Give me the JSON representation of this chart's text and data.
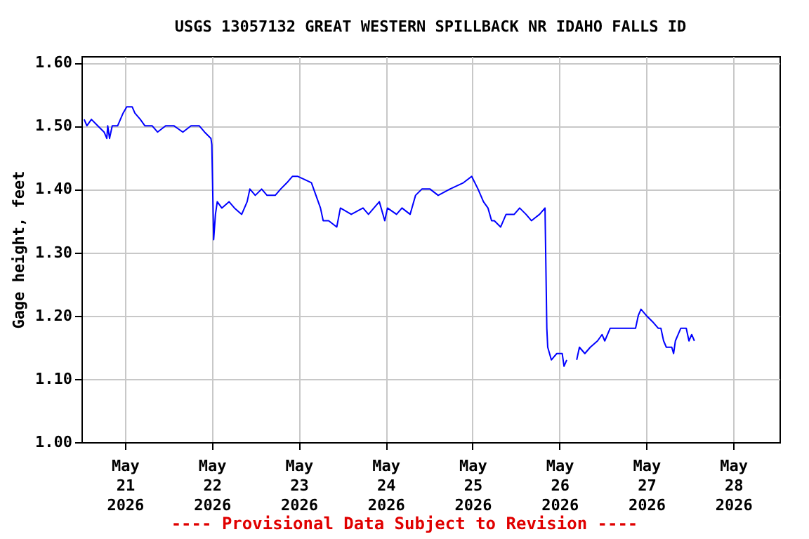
{
  "chart_data": {
    "type": "line",
    "title": "USGS 13057132 GREAT WESTERN SPILLBACK NR IDAHO FALLS ID",
    "ylabel": "Gage height, feet",
    "annotations": [
      "---- Provisional Data Subject to Revision ----"
    ],
    "xlim": [
      "2026-05-20T12:00",
      "2026-05-28T12:45"
    ],
    "xticks": [
      {
        "value": "2026-05-21T00:00",
        "label": "May\n21\n2026"
      },
      {
        "value": "2026-05-22T00:00",
        "label": "May\n22\n2026"
      },
      {
        "value": "2026-05-23T00:00",
        "label": "May\n23\n2026"
      },
      {
        "value": "2026-05-24T00:00",
        "label": "May\n24\n2026"
      },
      {
        "value": "2026-05-25T00:00",
        "label": "May\n25\n2026"
      },
      {
        "value": "2026-05-26T00:00",
        "label": "May\n26\n2026"
      },
      {
        "value": "2026-05-27T00:00",
        "label": "May\n27\n2026"
      },
      {
        "value": "2026-05-28T00:00",
        "label": "May\n28\n2026"
      }
    ],
    "ylim": [
      1.0,
      1.61
    ],
    "yticks": [
      {
        "value": 1.0,
        "label": "1.00"
      },
      {
        "value": 1.1,
        "label": "1.10"
      },
      {
        "value": 1.2,
        "label": "1.20"
      },
      {
        "value": 1.3,
        "label": "1.30"
      },
      {
        "value": 1.4,
        "label": "1.40"
      },
      {
        "value": 1.5,
        "label": "1.50"
      },
      {
        "value": 1.6,
        "label": "1.60"
      }
    ],
    "grid": true,
    "x": [
      "2026-05-20T12:45",
      "2026-05-20T13:30",
      "2026-05-20T14:45",
      "2026-05-20T16:30",
      "2026-05-20T18:15",
      "2026-05-20T19:00",
      "2026-05-20T19:15",
      "2026-05-20T19:45",
      "2026-05-20T20:30",
      "2026-05-20T22:00",
      "2026-05-20T23:30",
      "2026-05-21T00:30",
      "2026-05-21T02:00",
      "2026-05-21T02:45",
      "2026-05-21T04:15",
      "2026-05-21T05:30",
      "2026-05-21T07:30",
      "2026-05-21T09:00",
      "2026-05-21T11:15",
      "2026-05-21T13:30",
      "2026-05-21T16:00",
      "2026-05-21T18:15",
      "2026-05-21T20:30",
      "2026-05-21T22:00",
      "2026-05-21T23:45",
      "2026-05-22T00:00",
      "2026-05-22T00:30",
      "2026-05-22T01:00",
      "2026-05-22T01:30",
      "2026-05-22T02:45",
      "2026-05-22T04:45",
      "2026-05-22T06:15",
      "2026-05-22T08:15",
      "2026-05-22T09:45",
      "2026-05-22T10:30",
      "2026-05-22T12:00",
      "2026-05-22T13:45",
      "2026-05-22T15:15",
      "2026-05-22T17:30",
      "2026-05-22T19:00",
      "2026-05-22T20:45",
      "2026-05-22T22:15",
      "2026-05-22T23:45",
      "2026-05-23T03:30",
      "2026-05-23T04:45",
      "2026-05-23T06:00",
      "2026-05-23T06:45",
      "2026-05-23T08:15",
      "2026-05-23T10:30",
      "2026-05-23T11:30",
      "2026-05-23T14:30",
      "2026-05-23T17:45",
      "2026-05-23T19:15",
      "2026-05-23T20:45",
      "2026-05-23T22:15",
      "2026-05-23T23:45",
      "2026-05-24T00:30",
      "2026-05-24T03:00",
      "2026-05-24T04:30",
      "2026-05-24T06:45",
      "2026-05-24T08:15",
      "2026-05-24T10:00",
      "2026-05-24T12:15",
      "2026-05-24T14:30",
      "2026-05-24T17:45",
      "2026-05-24T21:30",
      "2026-05-24T23:45",
      "2026-05-25T01:30",
      "2026-05-25T03:00",
      "2026-05-25T04:15",
      "2026-05-25T05:15",
      "2026-05-25T06:00",
      "2026-05-25T07:45",
      "2026-05-25T09:15",
      "2026-05-25T11:30",
      "2026-05-25T13:00",
      "2026-05-25T14:45",
      "2026-05-25T16:15",
      "2026-05-25T18:30",
      "2026-05-25T20:00",
      "2026-05-25T20:30",
      "2026-05-25T20:45",
      "2026-05-25T21:45",
      "2026-05-25T23:15",
      "2026-05-26T00:45",
      "2026-05-26T01:15",
      "2026-05-26T02:00",
      "2026-05-26T02:15",
      "2026-05-26T04:45",
      "2026-05-26T05:30",
      "2026-05-26T07:00",
      "2026-05-26T08:30",
      "2026-05-26T10:30",
      "2026-05-26T11:45",
      "2026-05-26T12:30",
      "2026-05-26T14:00",
      "2026-05-26T16:15",
      "2026-05-26T18:45",
      "2026-05-26T21:00",
      "2026-05-26T21:45",
      "2026-05-26T22:30",
      "2026-05-27T00:00",
      "2026-05-27T01:45",
      "2026-05-27T03:15",
      "2026-05-27T04:00",
      "2026-05-27T04:45",
      "2026-05-27T05:30",
      "2026-05-27T07:00",
      "2026-05-27T07:30",
      "2026-05-27T08:00",
      "2026-05-27T08:45",
      "2026-05-27T09:30",
      "2026-05-27T11:00",
      "2026-05-27T11:45",
      "2026-05-27T12:30",
      "2026-05-27T13:15"
    ],
    "series": [
      {
        "color": "#0000ff",
        "values": [
          1.51,
          1.5,
          1.51,
          1.5,
          1.49,
          1.48,
          1.5,
          1.48,
          1.5,
          1.5,
          1.52,
          1.53,
          1.53,
          1.52,
          1.51,
          1.5,
          1.5,
          1.49,
          1.5,
          1.5,
          1.49,
          1.5,
          1.5,
          1.49,
          1.48,
          1.47,
          1.32,
          1.36,
          1.38,
          1.37,
          1.38,
          1.37,
          1.36,
          1.38,
          1.4,
          1.39,
          1.4,
          1.39,
          1.39,
          1.4,
          1.41,
          1.42,
          1.42,
          1.41,
          1.39,
          1.37,
          1.35,
          1.35,
          1.34,
          1.37,
          1.36,
          1.37,
          1.36,
          1.37,
          1.38,
          1.35,
          1.37,
          1.36,
          1.37,
          1.36,
          1.39,
          1.4,
          1.4,
          1.39,
          1.4,
          1.41,
          1.42,
          1.4,
          1.38,
          1.37,
          1.35,
          1.35,
          1.34,
          1.36,
          1.36,
          1.37,
          1.36,
          1.35,
          1.36,
          1.37,
          1.18,
          1.15,
          1.13,
          1.14,
          1.14,
          1.12,
          1.13,
          null,
          1.13,
          1.15,
          1.14,
          1.15,
          1.16,
          1.17,
          1.16,
          1.18,
          1.18,
          1.18,
          1.18,
          1.2,
          1.21,
          1.2,
          1.19,
          1.18,
          1.18,
          1.16,
          1.15,
          1.15,
          1.14,
          1.16,
          1.17,
          1.18,
          1.18,
          1.16,
          1.17,
          1.16
        ]
      }
    ]
  }
}
